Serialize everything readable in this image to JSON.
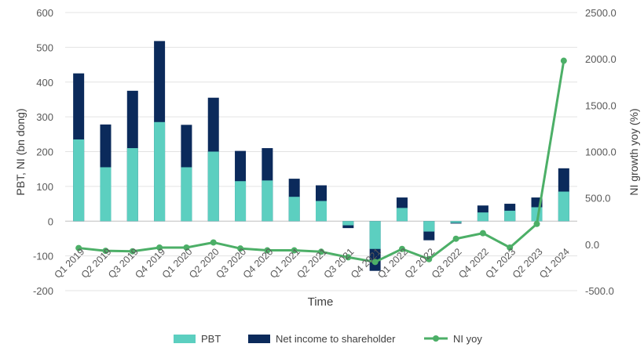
{
  "chart_data": {
    "type": "bar",
    "title": "",
    "xlabel": "Time",
    "ylabel_left": "PBT, NI (bn dong)",
    "ylabel_right": "NI growth yoy (%)",
    "ylim_left": [
      -200,
      600
    ],
    "ylim_right": [
      -500,
      2500
    ],
    "yticks_left": [
      "600",
      "500",
      "400",
      "300",
      "200",
      "100",
      "0",
      "-100",
      "-200"
    ],
    "yticks_right": [
      "2500.0",
      "2000.0",
      "1500.0",
      "1000.0",
      "500.0",
      "0.0",
      "-500.0"
    ],
    "categories": [
      "Q1 2019",
      "Q2 2019",
      "Q3 2019",
      "Q4 2019",
      "Q1 2020",
      "Q2 2020",
      "Q3 2020",
      "Q4 2020",
      "Q1 2021",
      "Q2 2021",
      "Q3 2021",
      "Q4 2021",
      "Q1 2022",
      "Q2 2022",
      "Q3 2022",
      "Q4 2022",
      "Q1 2023",
      "Q2 2023",
      "Q1 2024"
    ],
    "tick_labels": [
      "Q1 2019",
      "Q2 2019",
      "Q3 2019",
      "Q4 2019",
      "Q1 2020",
      "Q2 2020",
      "Q3 2020",
      "Q4 2020",
      "Q1 2021",
      "Q2 2021",
      "Q3 2021",
      "Q4 2021",
      "Q1 2022",
      "Q2 2022",
      "Q3 2022",
      "Q4 2022",
      "Q1 2023",
      "Q2 2023",
      "Q1 2024"
    ],
    "grid": true,
    "legend_position": "bottom",
    "series": [
      {
        "name": "PBT",
        "kind": "bar",
        "axis": "left",
        "color": "#5ccfc0",
        "values": [
          235,
          155,
          210,
          285,
          155,
          200,
          115,
          117,
          70,
          58,
          -12,
          -80,
          38,
          -30,
          -5,
          25,
          30,
          40,
          85
        ]
      },
      {
        "name": "Net income to shareholder",
        "kind": "bar",
        "axis": "left",
        "color": "#0b2a5b",
        "values": [
          425,
          278,
          375,
          518,
          277,
          355,
          202,
          210,
          122,
          103,
          -20,
          -143,
          68,
          -55,
          -7,
          45,
          50,
          68,
          152
        ]
      },
      {
        "name": "NI yoy",
        "kind": "line",
        "axis": "right",
        "color": "#4caf67",
        "values": [
          -40,
          -70,
          -75,
          -35,
          -35,
          20,
          -45,
          -65,
          -65,
          -80,
          -140,
          -190,
          -50,
          -160,
          60,
          120,
          -35,
          220,
          1980
        ]
      }
    ]
  }
}
